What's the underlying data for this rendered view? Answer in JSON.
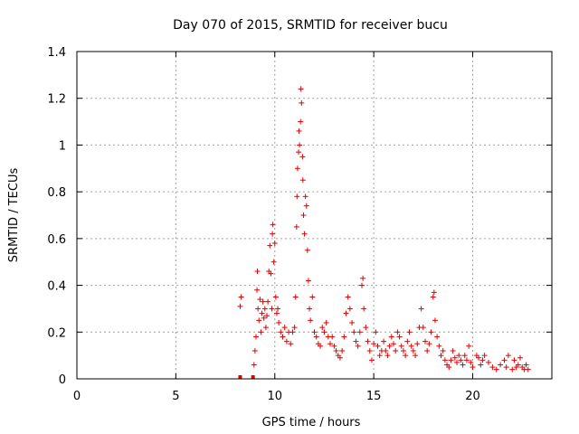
{
  "chart_data": {
    "type": "scatter",
    "title": "Day 070 of 2015, SRMTID for receiver bucu",
    "xlabel": "GPS time / hours",
    "ylabel": "SRMTID / TECUs",
    "xlim": [
      0,
      24
    ],
    "ylim": [
      0,
      1.4
    ],
    "xticks": [
      0,
      5,
      10,
      15,
      20
    ],
    "yticks": [
      0,
      0.2,
      0.4,
      0.6,
      0.8,
      1,
      1.2,
      1.4
    ],
    "grid": true,
    "marker": "+",
    "color": "#e00000",
    "series": [
      {
        "name": "SRMTID",
        "points": [
          [
            8.25,
            0.0
          ],
          [
            8.25,
            0.31
          ],
          [
            8.3,
            0.35
          ],
          [
            8.9,
            0.0
          ],
          [
            8.95,
            0.06
          ],
          [
            9.0,
            0.12
          ],
          [
            9.05,
            0.18
          ],
          [
            9.1,
            0.38
          ],
          [
            9.12,
            0.46
          ],
          [
            9.15,
            0.3
          ],
          [
            9.2,
            0.25
          ],
          [
            9.25,
            0.34
          ],
          [
            9.3,
            0.2
          ],
          [
            9.35,
            0.28
          ],
          [
            9.4,
            0.33
          ],
          [
            9.45,
            0.26
          ],
          [
            9.5,
            0.3
          ],
          [
            9.55,
            0.22
          ],
          [
            9.6,
            0.27
          ],
          [
            9.65,
            0.33
          ],
          [
            9.7,
            0.46
          ],
          [
            9.75,
            0.57
          ],
          [
            9.8,
            0.45
          ],
          [
            9.85,
            0.3
          ],
          [
            9.88,
            0.62
          ],
          [
            9.9,
            0.66
          ],
          [
            9.95,
            0.5
          ],
          [
            10.0,
            0.58
          ],
          [
            10.05,
            0.35
          ],
          [
            10.1,
            0.28
          ],
          [
            10.15,
            0.3
          ],
          [
            10.2,
            0.24
          ],
          [
            10.3,
            0.2
          ],
          [
            10.4,
            0.18
          ],
          [
            10.5,
            0.22
          ],
          [
            10.6,
            0.16
          ],
          [
            10.7,
            0.2
          ],
          [
            10.8,
            0.15
          ],
          [
            10.9,
            0.2
          ],
          [
            11.0,
            0.22
          ],
          [
            11.05,
            0.35
          ],
          [
            11.1,
            0.65
          ],
          [
            11.12,
            0.78
          ],
          [
            11.15,
            0.9
          ],
          [
            11.2,
            0.97
          ],
          [
            11.22,
            1.06
          ],
          [
            11.25,
            1.0
          ],
          [
            11.3,
            1.1
          ],
          [
            11.32,
            1.24
          ],
          [
            11.35,
            1.18
          ],
          [
            11.4,
            0.95
          ],
          [
            11.42,
            0.85
          ],
          [
            11.45,
            0.7
          ],
          [
            11.5,
            0.62
          ],
          [
            11.55,
            0.78
          ],
          [
            11.6,
            0.74
          ],
          [
            11.65,
            0.55
          ],
          [
            11.7,
            0.42
          ],
          [
            11.75,
            0.3
          ],
          [
            11.8,
            0.25
          ],
          [
            11.9,
            0.35
          ],
          [
            12.0,
            0.2
          ],
          [
            12.1,
            0.18
          ],
          [
            12.2,
            0.15
          ],
          [
            12.3,
            0.14
          ],
          [
            12.4,
            0.22
          ],
          [
            12.5,
            0.2
          ],
          [
            12.6,
            0.24
          ],
          [
            12.7,
            0.18
          ],
          [
            12.8,
            0.15
          ],
          [
            12.9,
            0.18
          ],
          [
            13.0,
            0.14
          ],
          [
            13.1,
            0.12
          ],
          [
            13.2,
            0.1
          ],
          [
            13.3,
            0.09
          ],
          [
            13.4,
            0.12
          ],
          [
            13.5,
            0.18
          ],
          [
            13.6,
            0.28
          ],
          [
            13.7,
            0.35
          ],
          [
            13.8,
            0.3
          ],
          [
            13.9,
            0.24
          ],
          [
            14.0,
            0.2
          ],
          [
            14.1,
            0.16
          ],
          [
            14.2,
            0.14
          ],
          [
            14.3,
            0.2
          ],
          [
            14.4,
            0.4
          ],
          [
            14.45,
            0.43
          ],
          [
            14.5,
            0.3
          ],
          [
            14.6,
            0.22
          ],
          [
            14.7,
            0.16
          ],
          [
            14.8,
            0.12
          ],
          [
            14.9,
            0.08
          ],
          [
            15.0,
            0.15
          ],
          [
            15.1,
            0.2
          ],
          [
            15.2,
            0.14
          ],
          [
            15.3,
            0.1
          ],
          [
            15.4,
            0.12
          ],
          [
            15.5,
            0.16
          ],
          [
            15.6,
            0.12
          ],
          [
            15.7,
            0.1
          ],
          [
            15.8,
            0.14
          ],
          [
            15.9,
            0.18
          ],
          [
            16.0,
            0.15
          ],
          [
            16.1,
            0.12
          ],
          [
            16.2,
            0.2
          ],
          [
            16.3,
            0.18
          ],
          [
            16.4,
            0.14
          ],
          [
            16.5,
            0.12
          ],
          [
            16.6,
            0.1
          ],
          [
            16.7,
            0.16
          ],
          [
            16.8,
            0.2
          ],
          [
            16.9,
            0.14
          ],
          [
            17.0,
            0.12
          ],
          [
            17.1,
            0.1
          ],
          [
            17.2,
            0.15
          ],
          [
            17.3,
            0.22
          ],
          [
            17.4,
            0.3
          ],
          [
            17.5,
            0.22
          ],
          [
            17.6,
            0.16
          ],
          [
            17.7,
            0.12
          ],
          [
            17.8,
            0.15
          ],
          [
            17.9,
            0.2
          ],
          [
            18.0,
            0.35
          ],
          [
            18.05,
            0.37
          ],
          [
            18.1,
            0.25
          ],
          [
            18.2,
            0.18
          ],
          [
            18.3,
            0.14
          ],
          [
            18.4,
            0.1
          ],
          [
            18.5,
            0.12
          ],
          [
            18.6,
            0.08
          ],
          [
            18.7,
            0.06
          ],
          [
            18.8,
            0.05
          ],
          [
            18.9,
            0.08
          ],
          [
            19.0,
            0.12
          ],
          [
            19.1,
            0.09
          ],
          [
            19.2,
            0.07
          ],
          [
            19.3,
            0.1
          ],
          [
            19.4,
            0.08
          ],
          [
            19.5,
            0.06
          ],
          [
            19.6,
            0.1
          ],
          [
            19.7,
            0.08
          ],
          [
            19.8,
            0.14
          ],
          [
            19.9,
            0.07
          ],
          [
            20.0,
            0.05
          ],
          [
            20.2,
            0.1
          ],
          [
            20.3,
            0.09
          ],
          [
            20.4,
            0.06
          ],
          [
            20.5,
            0.08
          ],
          [
            20.6,
            0.1
          ],
          [
            20.8,
            0.07
          ],
          [
            21.0,
            0.05
          ],
          [
            21.2,
            0.04
          ],
          [
            21.4,
            0.06
          ],
          [
            21.6,
            0.08
          ],
          [
            21.7,
            0.05
          ],
          [
            21.8,
            0.1
          ],
          [
            22.0,
            0.04
          ],
          [
            22.1,
            0.08
          ],
          [
            22.2,
            0.05
          ],
          [
            22.3,
            0.06
          ],
          [
            22.4,
            0.09
          ],
          [
            22.5,
            0.05
          ],
          [
            22.6,
            0.04
          ],
          [
            22.7,
            0.06
          ],
          [
            22.8,
            0.04
          ]
        ]
      }
    ]
  }
}
